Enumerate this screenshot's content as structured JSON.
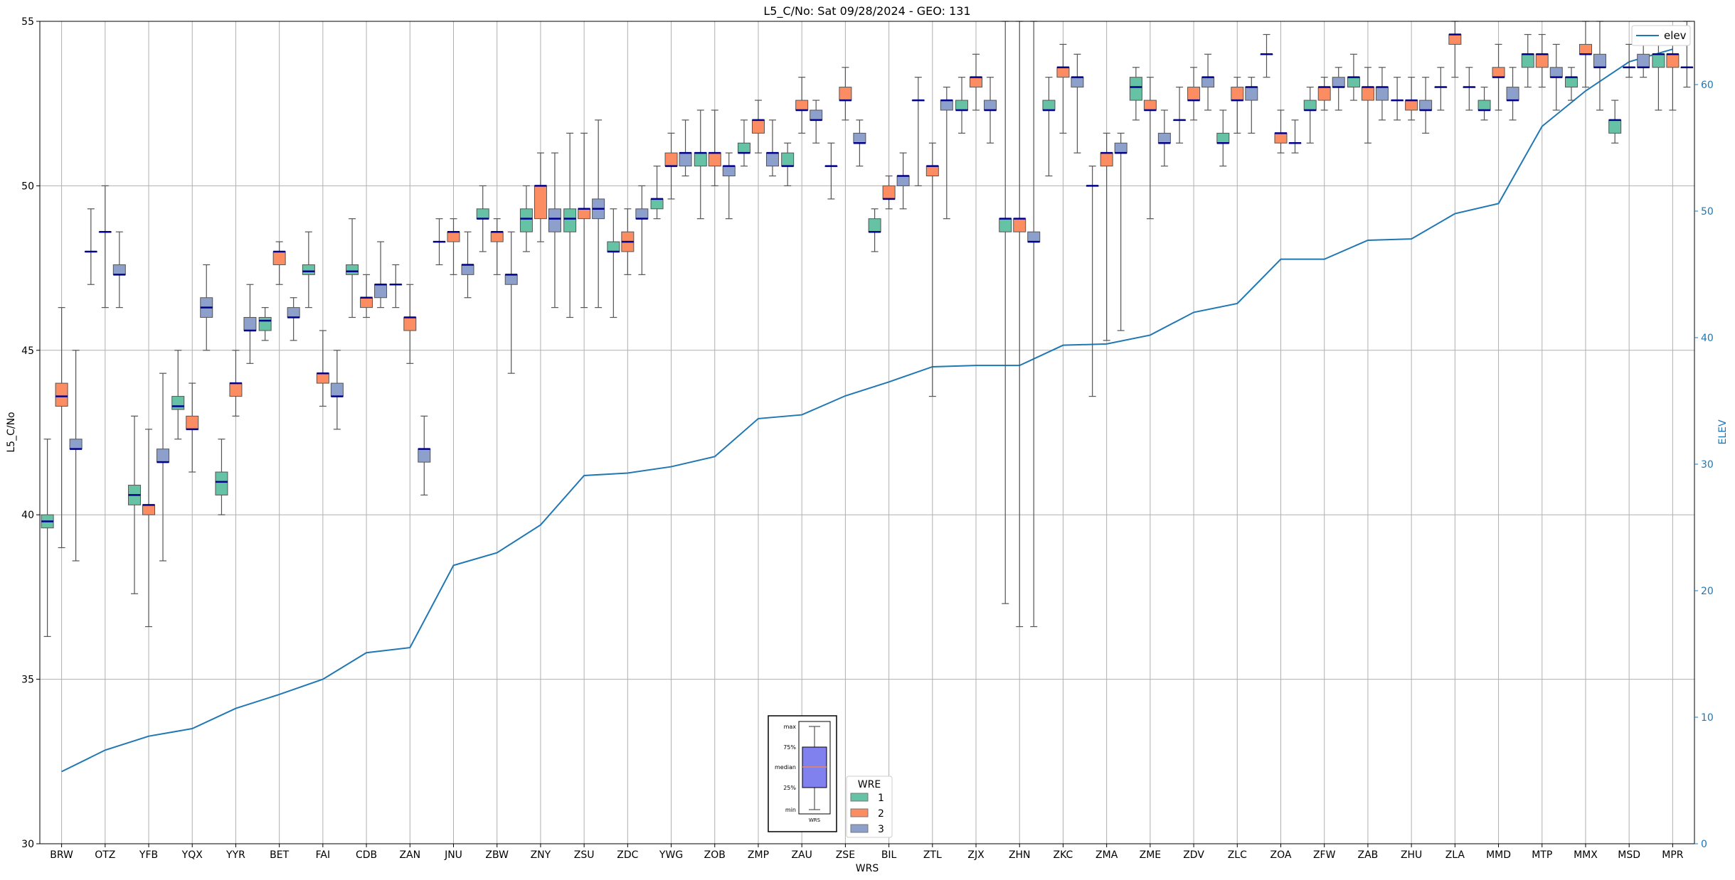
{
  "chart_data": {
    "type": "box",
    "title": "L5_C/No: Sat 09/28/2024 - GEO: 131",
    "xlabel": "WRS",
    "ylabel": "L5_C/No",
    "y2label": "ELEV",
    "ylim": [
      30,
      55
    ],
    "y2lim": [
      0,
      65
    ],
    "yticks": [
      30,
      35,
      40,
      45,
      50,
      55
    ],
    "y2ticks": [
      0,
      10,
      20,
      30,
      40,
      50,
      60
    ],
    "grid": true,
    "categories": [
      "BRW",
      "OTZ",
      "YFB",
      "YQX",
      "YYR",
      "BET",
      "FAI",
      "CDB",
      "ZAN",
      "JNU",
      "ZBW",
      "ZNY",
      "ZSU",
      "ZDC",
      "YWG",
      "ZOB",
      "ZMP",
      "ZAU",
      "ZSE",
      "BIL",
      "ZTL",
      "ZJX",
      "ZHN",
      "ZKC",
      "ZMA",
      "ZME",
      "ZDV",
      "ZLC",
      "ZOA",
      "ZFW",
      "ZAB",
      "ZHU",
      "ZLA",
      "MMD",
      "MTP",
      "MMX",
      "MSD",
      "MPR"
    ],
    "series": [
      {
        "name": "1",
        "color": "#66c2a5",
        "boxes": [
          [
            36.3,
            39.6,
            39.8,
            40.0,
            42.3
          ],
          [
            47.0,
            48.0,
            48.0,
            48.0,
            49.3
          ],
          [
            37.6,
            40.3,
            40.6,
            40.9,
            43.0
          ],
          [
            42.3,
            43.2,
            43.3,
            43.6,
            45.0
          ],
          [
            40.0,
            40.6,
            41.0,
            41.3,
            42.3
          ],
          [
            45.3,
            45.6,
            45.9,
            46.0,
            46.3
          ],
          [
            46.3,
            47.3,
            47.4,
            47.6,
            48.6
          ],
          [
            46.0,
            47.3,
            47.4,
            47.6,
            49.0
          ],
          [
            46.3,
            47.0,
            47.0,
            47.0,
            47.6
          ],
          [
            47.6,
            48.3,
            48.3,
            48.3,
            49.0
          ],
          [
            48.0,
            49.0,
            49.0,
            49.3,
            50.0
          ],
          [
            48.0,
            48.6,
            49.0,
            49.3,
            50.0
          ],
          [
            46.0,
            48.6,
            49.0,
            49.3,
            51.6
          ],
          [
            46.0,
            48.0,
            48.0,
            48.3,
            49.3
          ],
          [
            49.0,
            49.3,
            49.6,
            49.6,
            50.6
          ],
          [
            49.0,
            50.6,
            51.0,
            51.0,
            52.3
          ],
          [
            50.6,
            51.0,
            51.0,
            51.3,
            52.0
          ],
          [
            50.0,
            50.6,
            50.6,
            51.0,
            51.3
          ],
          [
            49.6,
            50.6,
            50.6,
            50.6,
            51.3
          ],
          [
            48.0,
            48.6,
            48.6,
            49.0,
            49.3
          ],
          [
            50.0,
            52.6,
            52.6,
            52.6,
            53.3
          ],
          [
            51.6,
            52.3,
            52.3,
            52.6,
            53.3
          ],
          [
            37.3,
            48.6,
            49.0,
            49.0,
            55.0
          ],
          [
            50.3,
            52.3,
            52.3,
            52.6,
            53.3
          ],
          [
            43.6,
            50.0,
            50.0,
            50.0,
            50.6
          ],
          [
            52.0,
            52.6,
            53.0,
            53.3,
            53.6
          ],
          [
            51.3,
            52.0,
            52.0,
            52.0,
            53.0
          ],
          [
            50.6,
            51.3,
            51.3,
            51.6,
            52.3
          ],
          [
            53.3,
            54.0,
            54.0,
            54.0,
            54.6
          ],
          [
            51.3,
            52.3,
            52.3,
            52.6,
            53.0
          ],
          [
            52.6,
            53.0,
            53.3,
            53.3,
            54.0
          ],
          [
            52.0,
            52.6,
            52.6,
            52.6,
            53.3
          ],
          [
            52.3,
            53.0,
            53.0,
            53.0,
            53.6
          ],
          [
            52.0,
            52.3,
            52.3,
            52.6,
            53.0
          ],
          [
            53.0,
            53.6,
            54.0,
            54.0,
            54.6
          ],
          [
            52.6,
            53.0,
            53.3,
            53.3,
            53.6
          ],
          [
            51.3,
            51.6,
            52.0,
            52.0,
            52.6
          ],
          [
            52.3,
            53.6,
            54.0,
            54.0,
            54.3
          ]
        ]
      },
      {
        "name": "2",
        "color": "#fc8d62",
        "boxes": [
          [
            39.0,
            43.3,
            43.6,
            44.0,
            46.3
          ],
          [
            46.3,
            48.6,
            48.6,
            48.6,
            50.0
          ],
          [
            36.6,
            40.0,
            40.3,
            40.3,
            42.6
          ],
          [
            41.3,
            42.6,
            42.6,
            43.0,
            44.0
          ],
          [
            43.0,
            43.6,
            44.0,
            44.0,
            45.0
          ],
          [
            47.0,
            47.6,
            48.0,
            48.0,
            48.3
          ],
          [
            43.3,
            44.0,
            44.3,
            44.3,
            45.6
          ],
          [
            46.0,
            46.3,
            46.6,
            46.6,
            47.3
          ],
          [
            44.6,
            45.6,
            46.0,
            46.0,
            47.0
          ],
          [
            47.3,
            48.3,
            48.6,
            48.6,
            49.0
          ],
          [
            47.3,
            48.3,
            48.6,
            48.6,
            49.0
          ],
          [
            48.3,
            49.0,
            50.0,
            50.0,
            51.0
          ],
          [
            46.3,
            49.0,
            49.3,
            49.3,
            51.6
          ],
          [
            47.3,
            48.0,
            48.3,
            48.6,
            49.3
          ],
          [
            49.6,
            50.6,
            50.6,
            51.0,
            51.6
          ],
          [
            50.0,
            50.6,
            51.0,
            51.0,
            52.3
          ],
          [
            51.0,
            51.6,
            52.0,
            52.0,
            52.6
          ],
          [
            51.6,
            52.3,
            52.3,
            52.6,
            53.3
          ],
          [
            52.0,
            52.6,
            52.6,
            53.0,
            53.6
          ],
          [
            49.3,
            49.6,
            49.6,
            50.0,
            50.3
          ],
          [
            43.6,
            50.3,
            50.6,
            50.6,
            51.3
          ],
          [
            52.3,
            53.0,
            53.3,
            53.3,
            54.0
          ],
          [
            36.6,
            48.6,
            49.0,
            49.0,
            55.0
          ],
          [
            51.6,
            53.3,
            53.6,
            53.6,
            54.3
          ],
          [
            45.3,
            50.6,
            51.0,
            51.0,
            51.6
          ],
          [
            49.0,
            52.3,
            52.3,
            52.6,
            53.3
          ],
          [
            52.0,
            52.6,
            52.6,
            53.0,
            53.6
          ],
          [
            51.6,
            52.6,
            52.6,
            53.0,
            53.3
          ],
          [
            51.0,
            51.3,
            51.6,
            51.6,
            52.3
          ],
          [
            52.3,
            52.6,
            53.0,
            53.0,
            53.3
          ],
          [
            51.3,
            52.6,
            53.0,
            53.0,
            53.6
          ],
          [
            52.0,
            52.3,
            52.6,
            52.6,
            53.3
          ],
          [
            53.3,
            54.3,
            54.6,
            54.6,
            55.0
          ],
          [
            52.3,
            53.3,
            53.3,
            53.6,
            54.3
          ],
          [
            53.0,
            53.6,
            54.0,
            54.0,
            54.6
          ],
          [
            53.0,
            54.0,
            54.0,
            54.3,
            55.0
          ],
          [
            53.3,
            53.6,
            53.6,
            53.6,
            54.3
          ],
          [
            52.3,
            53.6,
            54.0,
            54.0,
            54.6
          ]
        ]
      },
      {
        "name": "3",
        "color": "#8da0cb",
        "boxes": [
          [
            38.6,
            42.0,
            42.0,
            42.3,
            45.0
          ],
          [
            46.3,
            47.3,
            47.3,
            47.6,
            48.6
          ],
          [
            38.6,
            41.6,
            41.6,
            42.0,
            44.3
          ],
          [
            45.0,
            46.0,
            46.3,
            46.6,
            47.6
          ],
          [
            44.6,
            45.6,
            45.6,
            46.0,
            47.0
          ],
          [
            45.3,
            46.0,
            46.0,
            46.3,
            46.6
          ],
          [
            42.6,
            43.6,
            43.6,
            44.0,
            45.0
          ],
          [
            46.3,
            46.6,
            47.0,
            47.0,
            48.3
          ],
          [
            40.6,
            41.6,
            42.0,
            42.0,
            43.0
          ],
          [
            46.6,
            47.3,
            47.6,
            47.6,
            48.6
          ],
          [
            44.3,
            47.0,
            47.3,
            47.3,
            48.6
          ],
          [
            46.3,
            48.6,
            49.0,
            49.3,
            51.0
          ],
          [
            46.3,
            49.0,
            49.3,
            49.6,
            52.0
          ],
          [
            47.3,
            49.0,
            49.0,
            49.3,
            50.0
          ],
          [
            50.3,
            50.6,
            51.0,
            51.0,
            52.0
          ],
          [
            49.0,
            50.3,
            50.6,
            50.6,
            51.0
          ],
          [
            50.3,
            50.6,
            51.0,
            51.0,
            52.0
          ],
          [
            51.3,
            52.0,
            52.0,
            52.3,
            52.6
          ],
          [
            50.6,
            51.3,
            51.3,
            51.6,
            52.0
          ],
          [
            49.3,
            50.0,
            50.3,
            50.3,
            51.0
          ],
          [
            49.0,
            52.3,
            52.6,
            52.6,
            53.0
          ],
          [
            51.3,
            52.3,
            52.3,
            52.6,
            53.3
          ],
          [
            36.6,
            48.3,
            48.3,
            48.6,
            55.0
          ],
          [
            51.0,
            53.0,
            53.3,
            53.3,
            54.0
          ],
          [
            45.6,
            51.0,
            51.0,
            51.3,
            51.6
          ],
          [
            50.6,
            51.3,
            51.3,
            51.6,
            52.3
          ],
          [
            52.3,
            53.0,
            53.3,
            53.3,
            54.0
          ],
          [
            51.6,
            52.6,
            53.0,
            53.0,
            53.3
          ],
          [
            51.0,
            51.3,
            51.3,
            51.3,
            52.0
          ],
          [
            52.3,
            53.0,
            53.0,
            53.3,
            53.6
          ],
          [
            52.0,
            52.6,
            53.0,
            53.0,
            53.6
          ],
          [
            51.6,
            52.3,
            52.3,
            52.6,
            53.3
          ],
          [
            52.3,
            53.0,
            53.0,
            53.0,
            53.6
          ],
          [
            52.0,
            52.6,
            52.6,
            53.0,
            53.6
          ],
          [
            52.3,
            53.3,
            53.3,
            53.6,
            54.3
          ],
          [
            52.3,
            53.6,
            53.6,
            54.0,
            55.0
          ],
          [
            53.3,
            53.6,
            53.6,
            54.0,
            54.3
          ],
          [
            53.0,
            53.6,
            53.6,
            53.6,
            55.0
          ]
        ]
      }
    ],
    "elev": {
      "name": "elev",
      "color": "#1f77b4",
      "values": [
        5.7,
        7.4,
        8.5,
        9.1,
        10.7,
        11.8,
        13.0,
        15.1,
        15.5,
        22.0,
        23.0,
        25.2,
        29.1,
        29.3,
        29.8,
        30.6,
        33.6,
        33.9,
        35.4,
        36.5,
        37.7,
        37.8,
        37.8,
        39.4,
        39.5,
        40.2,
        42.0,
        42.7,
        46.2,
        46.2,
        47.7,
        47.8,
        49.8,
        50.6,
        56.7,
        59.5,
        61.8,
        62.8
      ]
    },
    "legend_wre": {
      "title": "WRE",
      "entries": [
        "1",
        "2",
        "3"
      ],
      "placement": "bottom-center"
    },
    "legend_elev": {
      "placement": "top-right"
    },
    "inset": {
      "labels": [
        "max",
        "75%",
        "median",
        "25%",
        "min"
      ],
      "xlabel": "WRS"
    }
  }
}
